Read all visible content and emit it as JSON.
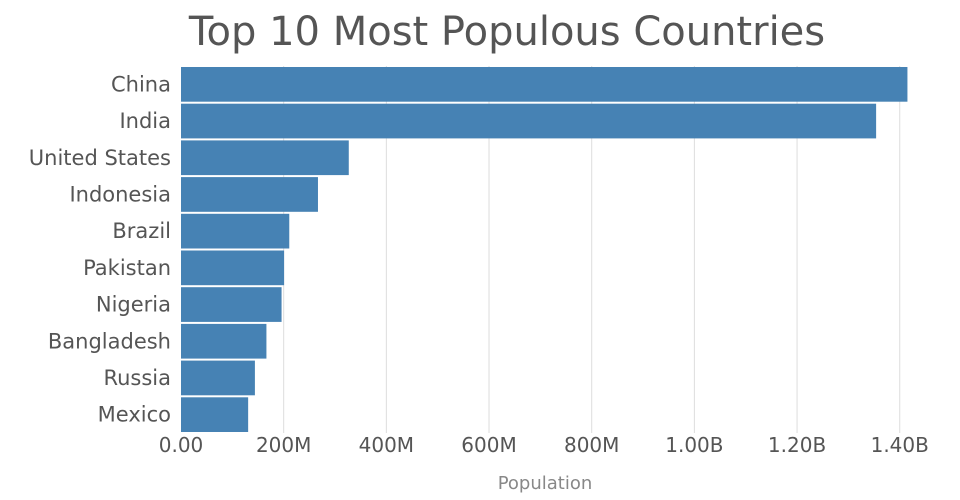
{
  "chart_data": {
    "type": "bar",
    "orientation": "horizontal",
    "title": "Top 10 Most Populous Countries",
    "xlabel": "Population",
    "ylabel": "",
    "categories": [
      "China",
      "India",
      "United States",
      "Indonesia",
      "Brazil",
      "Pakistan",
      "Nigeria",
      "Bangladesh",
      "Russia",
      "Mexico"
    ],
    "values": [
      1415000000,
      1354000000,
      326800000,
      266800000,
      210900000,
      200800000,
      195900000,
      166400000,
      143960000,
      130800000
    ],
    "xlim": [
      0,
      1420000000
    ],
    "xticks": [
      0,
      200000000,
      400000000,
      600000000,
      800000000,
      1000000000,
      1200000000,
      1400000000
    ],
    "xtick_labels": [
      "0.00",
      "200M",
      "400M",
      "600M",
      "800M",
      "1.00B",
      "1.20B",
      "1.40B"
    ],
    "grid": true,
    "legend": "none",
    "bar_color": "#4682b4"
  }
}
